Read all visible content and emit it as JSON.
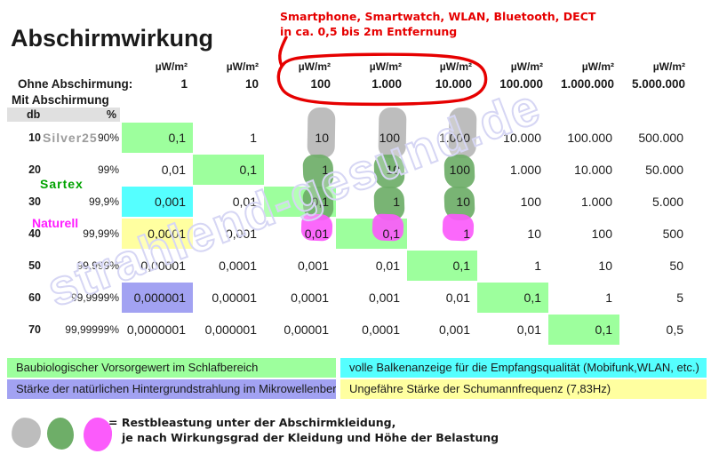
{
  "title": "Abschirmwirkung",
  "annotation": {
    "line1": "Smartphone, Smartwatch, WLAN, Bluetooth, DECT",
    "line2": "in ca. 0,5 bis 2m Entfernung"
  },
  "watermark": "strahlend-gesund.de",
  "table": {
    "unit_label": "µW/m²",
    "no_shielding_label": "Ohne Abschirmung:",
    "no_shielding_values": [
      "1",
      "10",
      "100",
      "1.000",
      "10.000",
      "100.000",
      "1.000.000",
      "5.000.000"
    ],
    "with_shielding_label": "Mit Abschirmung",
    "db_header": "db",
    "percent_header": "%",
    "rows": [
      {
        "db": "10",
        "percent": "90%",
        "values": [
          "0,1",
          "1",
          "10",
          "100",
          "1.000",
          "10.000",
          "100.000",
          "500.000"
        ],
        "highlights": {
          "0": "cell_green"
        },
        "blobs": {
          "2": "gray",
          "3": "gray",
          "4": "gray"
        }
      },
      {
        "db": "20",
        "percent": "99%",
        "values": [
          "0,01",
          "0,1",
          "1",
          "10",
          "100",
          "1.000",
          "10.000",
          "50.000"
        ],
        "highlights": {
          "1": "cell_green"
        },
        "blobs": {
          "2": "green",
          "3": "green",
          "4": "green"
        }
      },
      {
        "db": "30",
        "percent": "99,9%",
        "values": [
          "0,001",
          "0,01",
          "0,1",
          "1",
          "10",
          "100",
          "1.000",
          "5.000"
        ],
        "highlights": {
          "0": "cell_cyan",
          "2": "cell_green"
        },
        "blobs": {
          "2": "green",
          "3": "green",
          "4": "green"
        }
      },
      {
        "db": "40",
        "percent": "99,99%",
        "values": [
          "0,0001",
          "0,001",
          "0,01",
          "0,1",
          "1",
          "10",
          "100",
          "500"
        ],
        "highlights": {
          "0": "cell_yellow",
          "3": "cell_green"
        },
        "blobs": {
          "2": "magenta",
          "3": "magenta",
          "4": "magenta"
        }
      },
      {
        "db": "50",
        "percent": "99,999%",
        "values": [
          "0,00001",
          "0,0001",
          "0,001",
          "0,01",
          "0,1",
          "1",
          "10",
          "50"
        ],
        "highlights": {
          "4": "cell_green"
        },
        "blobs": {}
      },
      {
        "db": "60",
        "percent": "99,9999%",
        "values": [
          "0,000001",
          "0,00001",
          "0,0001",
          "0,001",
          "0,01",
          "0,1",
          "1",
          "5"
        ],
        "highlights": {
          "0": "cell_purple",
          "5": "cell_green"
        },
        "blobs": {}
      },
      {
        "db": "70",
        "percent": "99,99999%",
        "values": [
          "0,0000001",
          "0,000001",
          "0,00001",
          "0,0001",
          "0,001",
          "0,01",
          "0,1",
          "0,5"
        ],
        "highlights": {
          "6": "cell_green"
        },
        "blobs": {}
      }
    ]
  },
  "brands": [
    {
      "name": "Silver25",
      "color": "#9c9c9c"
    },
    {
      "name": "Sartex",
      "color": "#00a300"
    },
    {
      "name": "Naturell",
      "color": "#ff1cff"
    }
  ],
  "legend": [
    {
      "text": "Baubiologischer Vorsorgewert im Schlafbereich",
      "color": "#9dff9d"
    },
    {
      "text": "volle Balkenanzeige für die Empfangsqualität (Mobifunk,WLAN, etc.)",
      "color": "#55ffff"
    },
    {
      "text": "Stärke der natürlichen Hintergrundstrahlung im Mikrowellenbereich",
      "color": "#a2a2f2"
    },
    {
      "text": "Ungefähre Stärke der Schumannfrequenz (7,83Hz)",
      "color": "#ffffa0"
    }
  ],
  "blob_legend": {
    "line1": "= Restbleastung unter der Abschirmkleidung,",
    "line2": "je nach Wirkungsgrad der Kleidung und Höhe der Belastung",
    "colors": [
      "#bdbdbd",
      "#6eae68",
      "#fb5bfb"
    ]
  },
  "colors": {
    "cell_green": "#9dff9d",
    "cell_cyan": "#55ffff",
    "cell_yellow": "#ffffa0",
    "cell_purple": "#a2a2f2",
    "blob_gray": "#bdbdbd",
    "blob_green": "#6eae68",
    "blob_magenta": "#fb5bfb",
    "annotation_red": "#e60000",
    "header_bar": "#e0e0e0",
    "watermark": "#d6d6f4"
  }
}
